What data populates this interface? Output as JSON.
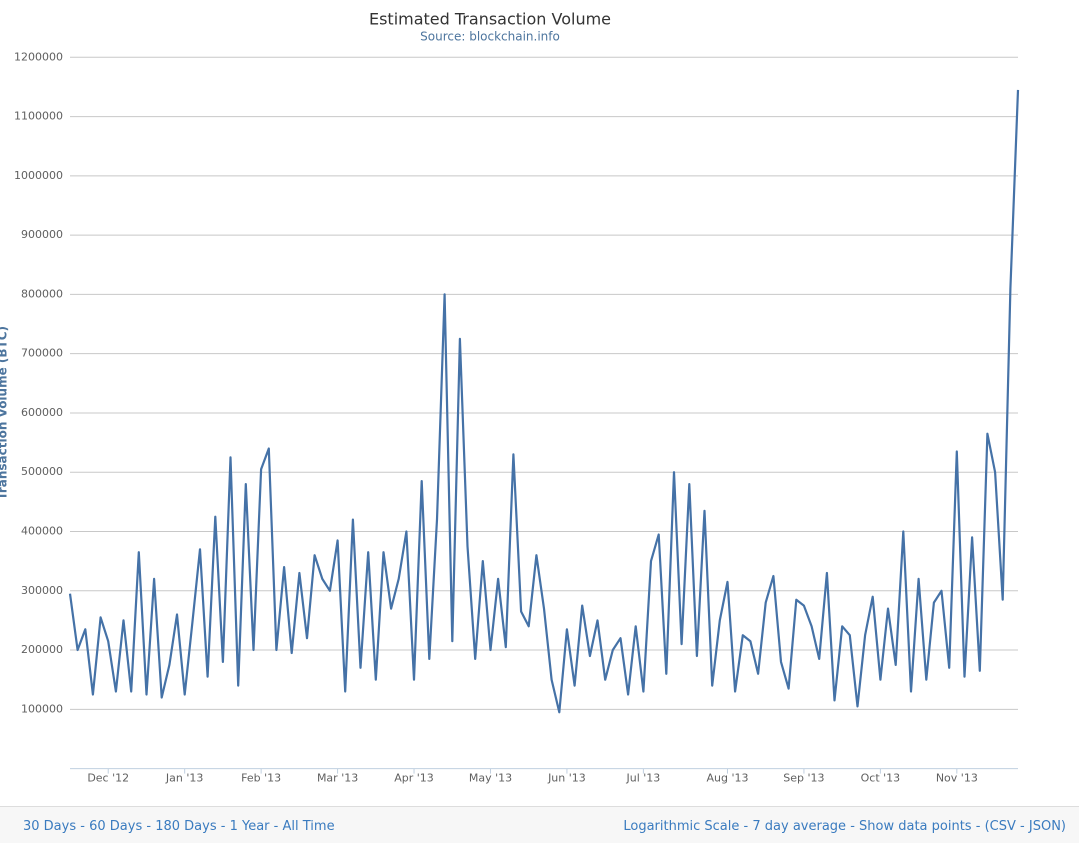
{
  "chart_data": {
    "type": "line",
    "title": "Estimated Transaction Volume",
    "subtitle": "Source: blockchain.info",
    "y_label": "Transaction Volume (BTC)",
    "categories": [
      null,
      null,
      null,
      null,
      null,
      "Dec '12",
      null,
      null,
      null,
      null,
      null,
      null,
      null,
      null,
      null,
      "Jan '13",
      null,
      null,
      null,
      null,
      null,
      null,
      null,
      null,
      null,
      "Feb '13",
      null,
      null,
      null,
      null,
      null,
      null,
      null,
      null,
      null,
      "Mar '13",
      null,
      null,
      null,
      null,
      null,
      null,
      null,
      null,
      null,
      "Apr '13",
      null,
      null,
      null,
      null,
      null,
      null,
      null,
      null,
      null,
      "May '13",
      null,
      null,
      null,
      null,
      null,
      null,
      null,
      null,
      null,
      "Jun '13",
      null,
      null,
      null,
      null,
      null,
      null,
      null,
      null,
      null,
      "Jul '13",
      null,
      null,
      null,
      null,
      null,
      null,
      null,
      null,
      null,
      null,
      "Aug '13",
      null,
      null,
      null,
      null,
      null,
      null,
      null,
      null,
      null,
      "Sep '13",
      null,
      null,
      null,
      null,
      null,
      null,
      null,
      null,
      null,
      "Oct '13",
      null,
      null,
      null,
      null,
      null,
      null,
      null,
      null,
      null,
      "Nov '13",
      null,
      null,
      null,
      null,
      null,
      null,
      null,
      null
    ],
    "series": [
      {
        "color": "#4572a7",
        "values": [
          295000,
          200000,
          235000,
          125000,
          255000,
          215000,
          130000,
          250000,
          130000,
          365000,
          125000,
          320000,
          120000,
          175000,
          260000,
          125000,
          245000,
          370000,
          155000,
          425000,
          180000,
          525000,
          140000,
          480000,
          200000,
          505000,
          540000,
          200000,
          340000,
          195000,
          330000,
          220000,
          360000,
          320000,
          300000,
          385000,
          130000,
          420000,
          170000,
          365000,
          150000,
          365000,
          270000,
          320000,
          400000,
          150000,
          485000,
          185000,
          420000,
          800000,
          215000,
          725000,
          375000,
          185000,
          350000,
          200000,
          320000,
          205000,
          530000,
          265000,
          240000,
          360000,
          270000,
          150000,
          95000,
          235000,
          140000,
          275000,
          190000,
          250000,
          150000,
          200000,
          220000,
          125000,
          240000,
          130000,
          350000,
          395000,
          160000,
          500000,
          210000,
          480000,
          190000,
          435000,
          140000,
          250000,
          315000,
          130000,
          225000,
          215000,
          160000,
          280000,
          325000,
          180000,
          135000,
          285000,
          275000,
          240000,
          185000,
          330000,
          115000,
          240000,
          225000,
          105000,
          225000,
          290000,
          150000,
          270000,
          175000,
          400000,
          130000,
          320000,
          150000,
          280000,
          300000,
          170000,
          535000,
          155000,
          390000,
          165000,
          565000,
          500000,
          285000,
          810000,
          1145000
        ]
      }
    ],
    "ylim": [
      0,
      1200000
    ],
    "yticks": [
      100000,
      200000,
      300000,
      400000,
      500000,
      600000,
      700000,
      800000,
      900000,
      1000000,
      1100000,
      1200000
    ],
    "grid": true
  },
  "footer": {
    "ranges": [
      "30 Days",
      "60 Days",
      "180 Days",
      "1 Year",
      "All Time"
    ],
    "options": [
      "Logarithmic Scale",
      "7 day average",
      "Show data points"
    ],
    "separator": "-",
    "open": "(",
    "csv": "CSV",
    "json": "JSON",
    "close": ")"
  }
}
